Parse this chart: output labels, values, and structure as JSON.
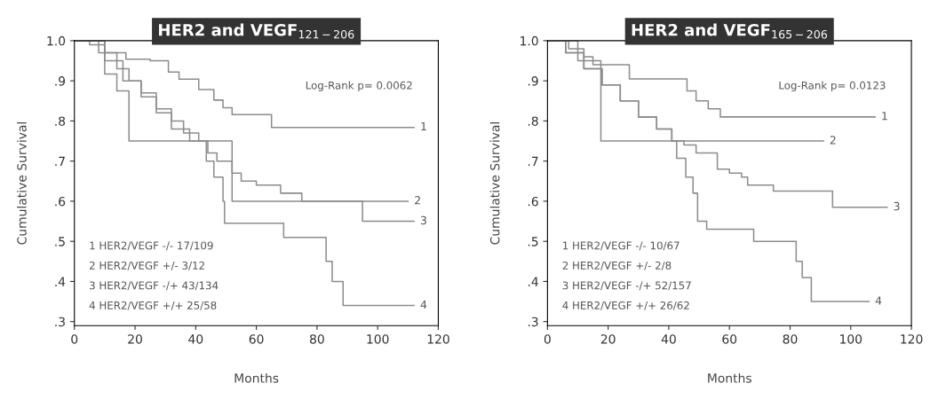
{
  "chart_data": [
    {
      "type": "step",
      "title": "HER2 and VEGF$_{121−206}$",
      "xlabel": "Months",
      "ylabel": "Cumulative Survival",
      "xlim": [
        0,
        120
      ],
      "ylim": [
        0.29,
        1.0
      ],
      "xticks": [
        0,
        20,
        40,
        60,
        80,
        100,
        120
      ],
      "yticks": [
        {
          "value": 0.3,
          "label": ".3"
        },
        {
          "value": 0.4,
          "label": ".4"
        },
        {
          "value": 0.5,
          "label": ".5"
        },
        {
          "value": 0.6,
          "label": ".6"
        },
        {
          "value": 0.7,
          "label": ".7"
        },
        {
          "value": 0.8,
          "label": ".8"
        },
        {
          "value": 0.9,
          "label": ".9"
        },
        {
          "value": 1.0,
          "label": "1.0"
        }
      ],
      "grid": false,
      "legend": false,
      "annotations": [
        "Log-Rank p= 0.0062",
        "1 HER2/VEGF -/- 17/109",
        "2 HER2/VEGF +/- 3/12",
        "3 HER2/VEGF -/+ 43/134",
        "4 HER2/VEGF +/+ 25/58"
      ],
      "series": [
        {
          "name": "1",
          "color": "#8c8c8c",
          "x": [
            0,
            5,
            10,
            17,
            25,
            31,
            34.5,
            41,
            46,
            49,
            52,
            65,
            112
          ],
          "values": [
            1,
            0.99,
            0.97,
            0.954,
            0.95,
            0.922,
            0.904,
            0.878,
            0.852,
            0.833,
            0.816,
            0.784,
            0.784
          ]
        },
        {
          "name": "2",
          "color": "#8c8c8c",
          "x": [
            0,
            10,
            14,
            18,
            52,
            110
          ],
          "values": [
            1,
            0.917,
            0.875,
            0.75,
            0.6,
            0.6
          ]
        },
        {
          "name": "3",
          "color": "#8c8c8c",
          "x": [
            0,
            8,
            14,
            18,
            22,
            27,
            32,
            36,
            41,
            44,
            47,
            52,
            55,
            60,
            68,
            75,
            95,
            112
          ],
          "values": [
            1,
            0.97,
            0.93,
            0.9,
            0.87,
            0.83,
            0.8,
            0.77,
            0.75,
            0.72,
            0.7,
            0.67,
            0.65,
            0.64,
            0.62,
            0.6,
            0.55,
            0.55
          ]
        },
        {
          "name": "4",
          "color": "#8c8c8c",
          "x": [
            0,
            10,
            16,
            22,
            27,
            32,
            38,
            43.5,
            46,
            49,
            49.5,
            69,
            83,
            85,
            88.6,
            112
          ],
          "values": [
            1,
            0.95,
            0.9,
            0.86,
            0.82,
            0.78,
            0.75,
            0.7,
            0.66,
            0.6,
            0.545,
            0.51,
            0.45,
            0.4,
            0.34,
            0.34
          ]
        }
      ]
    },
    {
      "type": "step",
      "title": "HER2 and VEGF$_{165−206}$",
      "xlabel": "Months",
      "ylabel": "Cumulative Survival",
      "xlim": [
        0,
        120
      ],
      "ylim": [
        0.29,
        1.0
      ],
      "xticks": [
        0,
        20,
        40,
        60,
        80,
        100,
        120
      ],
      "yticks": [
        {
          "value": 0.3,
          "label": ".3"
        },
        {
          "value": 0.4,
          "label": ".4"
        },
        {
          "value": 0.5,
          "label": ".5"
        },
        {
          "value": 0.6,
          "label": ".6"
        },
        {
          "value": 0.7,
          "label": ".7"
        },
        {
          "value": 0.8,
          "label": ".8"
        },
        {
          "value": 0.9,
          "label": ".9"
        },
        {
          "value": 1.0,
          "label": "1.0"
        }
      ],
      "grid": false,
      "legend": false,
      "annotations": [
        "Log-Rank p= 0.0123",
        "1 HER2/VEGF -/- 10/67",
        "2 HER2/VEGF +/- 2/8",
        "3 HER2/VEGF -/+ 52/157",
        "4 HER2/VEGF +/+ 26/62"
      ],
      "series": [
        {
          "name": "1",
          "color": "#8c8c8c",
          "x": [
            0,
            7,
            12,
            15,
            27,
            46,
            49,
            53,
            57,
            108
          ],
          "values": [
            1,
            0.98,
            0.96,
            0.94,
            0.905,
            0.875,
            0.85,
            0.83,
            0.81,
            0.81
          ]
        },
        {
          "name": "2",
          "color": "#8c8c8c",
          "x": [
            0,
            10,
            17.6,
            91
          ],
          "values": [
            1,
            0.95,
            0.75,
            0.75
          ]
        },
        {
          "name": "3",
          "color": "#8c8c8c",
          "x": [
            0,
            6,
            12,
            18,
            24,
            30,
            36,
            41,
            45,
            49,
            56,
            60,
            64,
            66,
            74.5,
            94,
            112
          ],
          "values": [
            1,
            0.97,
            0.93,
            0.89,
            0.85,
            0.81,
            0.78,
            0.75,
            0.74,
            0.72,
            0.68,
            0.67,
            0.66,
            0.64,
            0.625,
            0.585,
            0.585
          ]
        },
        {
          "name": "4",
          "color": "#8c8c8c",
          "x": [
            0,
            6,
            12,
            18,
            24,
            30,
            36,
            41,
            42.6,
            45.6,
            48,
            49.5,
            52.5,
            68,
            82,
            84,
            87,
            106
          ],
          "values": [
            1,
            0.97,
            0.93,
            0.89,
            0.85,
            0.81,
            0.78,
            0.75,
            0.707,
            0.66,
            0.62,
            0.55,
            0.53,
            0.5,
            0.45,
            0.41,
            0.35,
            0.35
          ]
        }
      ]
    }
  ]
}
